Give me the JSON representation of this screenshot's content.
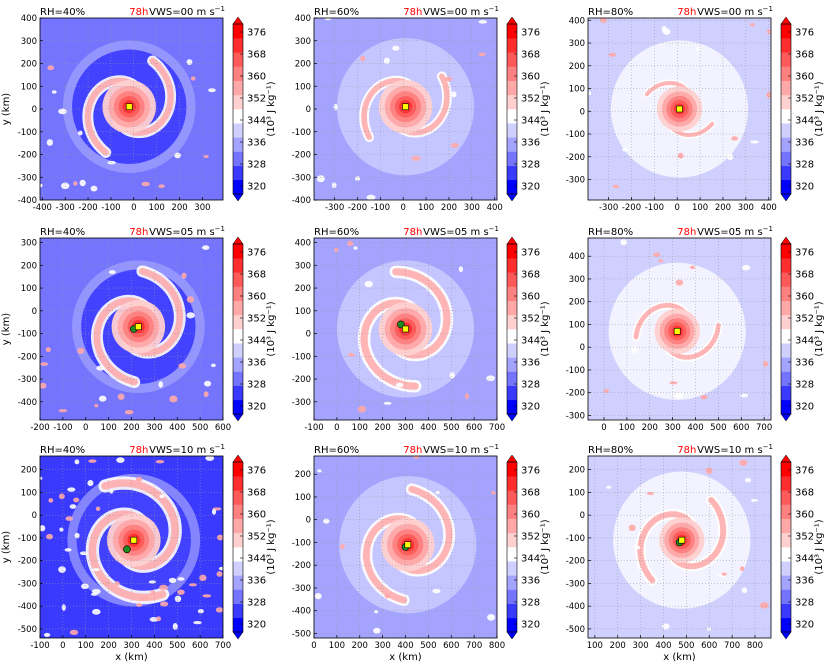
{
  "colors": {
    "scale": [
      "#0000ff",
      "#3a3aff",
      "#7474ff",
      "#a4a4ff",
      "#d0d0ff",
      "#ffffff",
      "#ffd0d0",
      "#ffa8a8",
      "#ff8080",
      "#ff5a5a",
      "#ff2e2e",
      "#ff0000"
    ],
    "time_label": "#ff0000",
    "center_yellow": "#ffff00",
    "center_green": "#1e8c1e",
    "grid": "#999999"
  },
  "chart_data": [
    {
      "type": "heatmap",
      "rh": "RH=40%",
      "time": "78h",
      "vws": "VWS=00 m s",
      "xlim": [
        -410,
        390
      ],
      "ylim": [
        -400,
        400
      ],
      "xticks": [
        -400,
        -300,
        -200,
        -100,
        0,
        100,
        200,
        300
      ],
      "yticks": [
        -400,
        -300,
        -200,
        -100,
        0,
        100,
        200,
        300,
        400
      ],
      "ylabel": "y (km)",
      "xlabel": "",
      "center": [
        -20,
        10
      ],
      "green": null,
      "env": 2,
      "arm": 0.78
    },
    {
      "type": "heatmap",
      "rh": "RH=60%",
      "time": "78h",
      "vws": "VWS=00 m s",
      "xlim": [
        -390,
        410
      ],
      "ylim": [
        -400,
        400
      ],
      "xticks": [
        -300,
        -200,
        -100,
        0,
        100,
        200,
        300,
        400
      ],
      "yticks": [
        -400,
        -300,
        -200,
        -100,
        0,
        100,
        200,
        300,
        400
      ],
      "ylabel": "",
      "xlabel": "",
      "center": [
        10,
        10
      ],
      "green": null,
      "env": 3,
      "arm": 0.7
    },
    {
      "type": "heatmap",
      "rh": "RH=80%",
      "time": "78h",
      "vws": "VWS=00 m s",
      "xlim": [
        -390,
        410
      ],
      "ylim": [
        -390,
        410
      ],
      "xticks": [
        -300,
        -200,
        -100,
        0,
        100,
        200,
        300,
        400
      ],
      "yticks": [
        -300,
        -200,
        -100,
        0,
        100,
        200,
        300,
        400
      ],
      "ylabel": "",
      "xlabel": "",
      "center": [
        10,
        10
      ],
      "green": null,
      "env": 4,
      "arm": 0.5
    },
    {
      "type": "heatmap",
      "rh": "RH=40%",
      "time": "78h",
      "vws": "VWS=05 m s",
      "xlim": [
        -200,
        600
      ],
      "ylim": [
        -480,
        320
      ],
      "xticks": [
        -200,
        -100,
        0,
        100,
        200,
        300,
        400,
        500,
        600
      ],
      "yticks": [
        -400,
        -300,
        -200,
        -100,
        0,
        100,
        200,
        300
      ],
      "ylabel": "y (km)",
      "xlabel": "",
      "center": [
        230,
        -70
      ],
      "green": [
        210,
        -80
      ],
      "env": 2,
      "arm": 0.85
    },
    {
      "type": "heatmap",
      "rh": "RH=60%",
      "time": "78h",
      "vws": "VWS=05 m s",
      "xlim": [
        -100,
        700
      ],
      "ylim": [
        -380,
        420
      ],
      "xticks": [
        -100,
        0,
        100,
        200,
        300,
        400,
        500,
        600,
        700
      ],
      "yticks": [
        -300,
        -200,
        -100,
        0,
        100,
        200,
        300,
        400
      ],
      "ylabel": "",
      "xlabel": "",
      "center": [
        300,
        20
      ],
      "green": [
        280,
        40
      ],
      "env": 3,
      "arm": 0.9
    },
    {
      "type": "heatmap",
      "rh": "RH=80%",
      "time": "78h",
      "vws": "VWS=05 m s",
      "xlim": [
        -70,
        730
      ],
      "ylim": [
        -320,
        480
      ],
      "xticks": [
        0,
        100,
        200,
        300,
        400,
        500,
        600,
        700
      ],
      "yticks": [
        -300,
        -200,
        -100,
        0,
        100,
        200,
        300,
        400
      ],
      "ylabel": "",
      "xlabel": "",
      "center": [
        320,
        70
      ],
      "green": null,
      "env": 4,
      "arm": 0.6
    },
    {
      "type": "heatmap",
      "rh": "RH=40%",
      "time": "78h",
      "vws": "VWS=10 m s",
      "xlim": [
        -100,
        700
      ],
      "ylim": [
        -540,
        260
      ],
      "xticks": [
        -100,
        0,
        100,
        200,
        300,
        400,
        500,
        600,
        700
      ],
      "yticks": [
        -500,
        -400,
        -300,
        -200,
        -100,
        0,
        100,
        200
      ],
      "ylabel": "y (km)",
      "xlabel": "x (km)",
      "center": [
        310,
        -110
      ],
      "green": [
        280,
        -150
      ],
      "env": 1,
      "arm": 0.95
    },
    {
      "type": "heatmap",
      "rh": "RH=60%",
      "time": "78h",
      "vws": "VWS=10 m s",
      "xlim": [
        0,
        800
      ],
      "ylim": [
        -520,
        280
      ],
      "xticks": [
        0,
        100,
        200,
        300,
        400,
        500,
        600,
        700,
        800
      ],
      "yticks": [
        -500,
        -400,
        -300,
        -200,
        -100,
        0,
        100,
        200
      ],
      "ylabel": "",
      "xlabel": "x (km)",
      "center": [
        410,
        -110
      ],
      "green": [
        400,
        -120
      ],
      "env": 3,
      "arm": 0.85
    },
    {
      "type": "heatmap",
      "rh": "RH=80%",
      "time": "78h",
      "vws": "VWS=10 m s",
      "xlim": [
        70,
        870
      ],
      "ylim": [
        -540,
        260
      ],
      "xticks": [
        100,
        200,
        300,
        400,
        500,
        600,
        700,
        800
      ],
      "yticks": [
        -500,
        -400,
        -300,
        -200,
        -100,
        0,
        100,
        200
      ],
      "ylabel": "",
      "xlabel": "x (km)",
      "center": [
        480,
        -110
      ],
      "green": [
        470,
        -120
      ],
      "env": 4,
      "arm": 0.75
    }
  ],
  "colorbar": {
    "ticks": [
      "376",
      "368",
      "360",
      "352",
      "344",
      "336",
      "328",
      "320"
    ],
    "label": "(10³ J kg⁻¹)"
  }
}
